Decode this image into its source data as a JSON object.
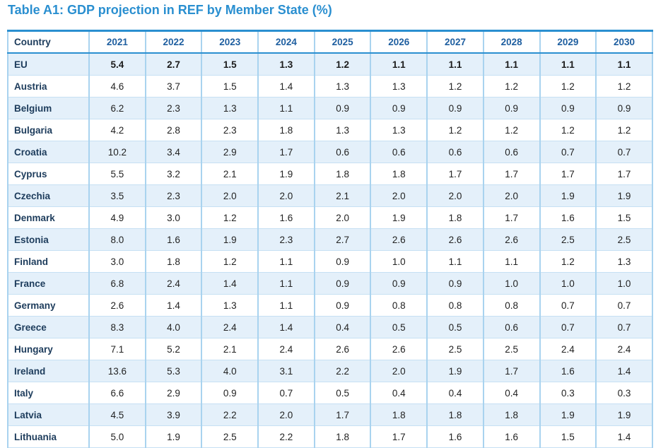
{
  "title": "Table A1: GDP projection in REF by Member State (%)",
  "table": {
    "headers": [
      "Country",
      "2021",
      "2022",
      "2023",
      "2024",
      "2025",
      "2026",
      "2027",
      "2028",
      "2029",
      "2030"
    ],
    "rows": [
      {
        "country": "EU",
        "values": [
          "5.4",
          "2.7",
          "1.5",
          "1.3",
          "1.2",
          "1.1",
          "1.1",
          "1.1",
          "1.1",
          "1.1"
        ]
      },
      {
        "country": "Austria",
        "values": [
          "4.6",
          "3.7",
          "1.5",
          "1.4",
          "1.3",
          "1.3",
          "1.2",
          "1.2",
          "1.2",
          "1.2"
        ]
      },
      {
        "country": "Belgium",
        "values": [
          "6.2",
          "2.3",
          "1.3",
          "1.1",
          "0.9",
          "0.9",
          "0.9",
          "0.9",
          "0.9",
          "0.9"
        ]
      },
      {
        "country": "Bulgaria",
        "values": [
          "4.2",
          "2.8",
          "2.3",
          "1.8",
          "1.3",
          "1.3",
          "1.2",
          "1.2",
          "1.2",
          "1.2"
        ]
      },
      {
        "country": "Croatia",
        "values": [
          "10.2",
          "3.4",
          "2.9",
          "1.7",
          "0.6",
          "0.6",
          "0.6",
          "0.6",
          "0.7",
          "0.7"
        ]
      },
      {
        "country": "Cyprus",
        "values": [
          "5.5",
          "3.2",
          "2.1",
          "1.9",
          "1.8",
          "1.8",
          "1.7",
          "1.7",
          "1.7",
          "1.7"
        ]
      },
      {
        "country": "Czechia",
        "values": [
          "3.5",
          "2.3",
          "2.0",
          "2.0",
          "2.1",
          "2.0",
          "2.0",
          "2.0",
          "1.9",
          "1.9"
        ]
      },
      {
        "country": "Denmark",
        "values": [
          "4.9",
          "3.0",
          "1.2",
          "1.6",
          "2.0",
          "1.9",
          "1.8",
          "1.7",
          "1.6",
          "1.5"
        ]
      },
      {
        "country": "Estonia",
        "values": [
          "8.0",
          "1.6",
          "1.9",
          "2.3",
          "2.7",
          "2.6",
          "2.6",
          "2.6",
          "2.5",
          "2.5"
        ]
      },
      {
        "country": "Finland",
        "values": [
          "3.0",
          "1.8",
          "1.2",
          "1.1",
          "0.9",
          "1.0",
          "1.1",
          "1.1",
          "1.2",
          "1.3"
        ]
      },
      {
        "country": "France",
        "values": [
          "6.8",
          "2.4",
          "1.4",
          "1.1",
          "0.9",
          "0.9",
          "0.9",
          "1.0",
          "1.0",
          "1.0"
        ]
      },
      {
        "country": "Germany",
        "values": [
          "2.6",
          "1.4",
          "1.3",
          "1.1",
          "0.9",
          "0.8",
          "0.8",
          "0.8",
          "0.7",
          "0.7"
        ]
      },
      {
        "country": "Greece",
        "values": [
          "8.3",
          "4.0",
          "2.4",
          "1.4",
          "0.4",
          "0.5",
          "0.5",
          "0.6",
          "0.7",
          "0.7"
        ]
      },
      {
        "country": "Hungary",
        "values": [
          "7.1",
          "5.2",
          "2.1",
          "2.4",
          "2.6",
          "2.6",
          "2.5",
          "2.5",
          "2.4",
          "2.4"
        ]
      },
      {
        "country": "Ireland",
        "values": [
          "13.6",
          "5.3",
          "4.0",
          "3.1",
          "2.2",
          "2.0",
          "1.9",
          "1.7",
          "1.6",
          "1.4"
        ]
      },
      {
        "country": "Italy",
        "values": [
          "6.6",
          "2.9",
          "0.9",
          "0.7",
          "0.5",
          "0.4",
          "0.4",
          "0.4",
          "0.3",
          "0.3"
        ]
      },
      {
        "country": "Latvia",
        "values": [
          "4.5",
          "3.9",
          "2.2",
          "2.0",
          "1.7",
          "1.8",
          "1.8",
          "1.8",
          "1.9",
          "1.9"
        ]
      },
      {
        "country": "Lithuania",
        "values": [
          "5.0",
          "1.9",
          "2.5",
          "2.2",
          "1.8",
          "1.7",
          "1.6",
          "1.6",
          "1.5",
          "1.4"
        ]
      }
    ]
  },
  "colors": {
    "title": "#2a8fd0",
    "header_text": "#1f5fa0",
    "row_stripe": "#e4f0fa",
    "border": "#a9d3ef"
  }
}
